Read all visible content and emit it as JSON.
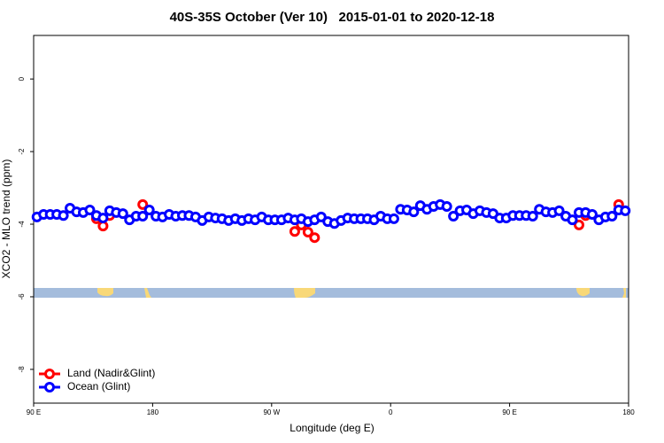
{
  "chart_data": {
    "type": "scatter",
    "title": "40S-35S October (Ver 10)   2015-01-01 to 2020-12-18",
    "x_label": "Longitude (deg E)",
    "y_label": "XCO2 - MLO trend (ppm)",
    "xlim": [
      90,
      540
    ],
    "xticks": [
      {
        "value": 90,
        "label": "90 E"
      },
      {
        "value": 180,
        "label": "180"
      },
      {
        "value": 270,
        "label": "90 W"
      },
      {
        "value": 360,
        "label": "0"
      },
      {
        "value": 450,
        "label": "90 E"
      },
      {
        "value": 540,
        "label": "180"
      }
    ],
    "ylim": [
      -8.93,
      1.2
    ],
    "yticks": [
      0,
      -2,
      -4,
      -6,
      -8
    ],
    "legend": "bottom-left",
    "series": [
      {
        "name": "Land (Nadir&Glint)",
        "color": "#ff0000",
        "x": [
          137.5,
          142.5,
          147.5,
          172.5,
          287.5,
          292.5,
          297.5,
          302.5,
          502.5,
          507.5,
          532.5
        ],
        "values": [
          -3.85,
          -4.05,
          -3.76,
          -3.46,
          -4.2,
          -4.02,
          -4.22,
          -4.37,
          -4.02,
          -3.76,
          -3.46
        ]
      },
      {
        "name": "Ocean (Glint)",
        "color": "#0000ff",
        "x": [
          92.5,
          97.5,
          102.5,
          107.5,
          112.5,
          117.5,
          122.5,
          127.5,
          132.5,
          137.5,
          142.5,
          147.5,
          152.5,
          157.5,
          162.5,
          167.5,
          172.5,
          177.5,
          182.5,
          187.5,
          192.5,
          197.5,
          202.5,
          207.5,
          212.5,
          217.5,
          222.5,
          227.5,
          232.5,
          237.5,
          242.5,
          247.5,
          252.5,
          257.5,
          262.5,
          267.5,
          272.5,
          277.5,
          282.5,
          287.5,
          292.5,
          297.5,
          302.5,
          307.5,
          312.5,
          317.5,
          322.5,
          327.5,
          332.5,
          337.5,
          342.5,
          347.5,
          352.5,
          357.5,
          362.5,
          367.5,
          372.5,
          377.5,
          382.5,
          387.5,
          392.5,
          397.5,
          402.5,
          407.5,
          412.5,
          417.5,
          422.5,
          427.5,
          432.5,
          437.5,
          442.5,
          447.5,
          452.5,
          457.5,
          462.5,
          467.5,
          472.5,
          477.5,
          482.5,
          487.5,
          492.5,
          497.5,
          502.5,
          507.5,
          512.5,
          517.5,
          522.5,
          527.5,
          532.5,
          537.5
        ],
        "values": [
          -3.8,
          -3.73,
          -3.73,
          -3.73,
          -3.76,
          -3.56,
          -3.66,
          -3.68,
          -3.61,
          -3.76,
          -3.83,
          -3.63,
          -3.68,
          -3.71,
          -3.88,
          -3.78,
          -3.78,
          -3.61,
          -3.78,
          -3.8,
          -3.73,
          -3.78,
          -3.76,
          -3.76,
          -3.8,
          -3.9,
          -3.8,
          -3.83,
          -3.85,
          -3.9,
          -3.85,
          -3.9,
          -3.85,
          -3.88,
          -3.8,
          -3.88,
          -3.88,
          -3.88,
          -3.83,
          -3.88,
          -3.85,
          -3.93,
          -3.88,
          -3.8,
          -3.93,
          -3.98,
          -3.9,
          -3.83,
          -3.85,
          -3.85,
          -3.85,
          -3.88,
          -3.78,
          -3.85,
          -3.85,
          -3.59,
          -3.61,
          -3.66,
          -3.49,
          -3.59,
          -3.51,
          -3.46,
          -3.51,
          -3.78,
          -3.63,
          -3.61,
          -3.71,
          -3.63,
          -3.68,
          -3.71,
          -3.83,
          -3.83,
          -3.76,
          -3.76,
          -3.76,
          -3.78,
          -3.59,
          -3.66,
          -3.68,
          -3.63,
          -3.78,
          -3.88,
          -3.68,
          -3.68,
          -3.73,
          -3.88,
          -3.8,
          -3.78,
          -3.61,
          -3.63
        ]
      }
    ]
  }
}
